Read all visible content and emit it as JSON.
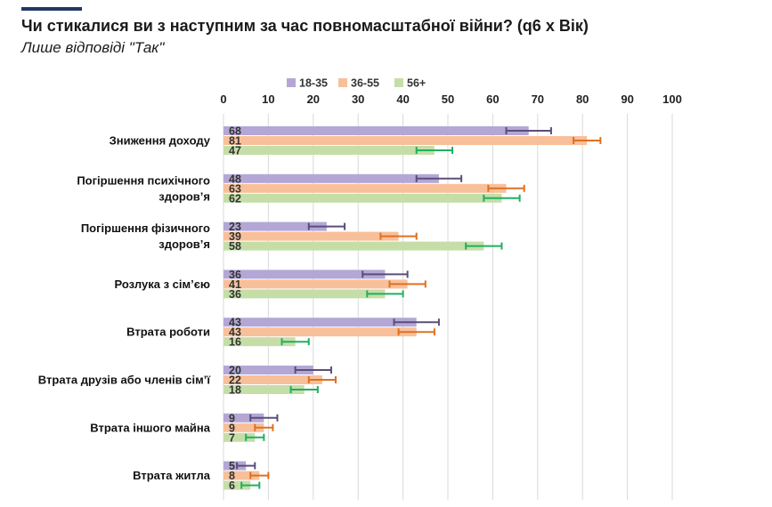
{
  "header": {
    "title": "Чи стикалися ви з наступним за час повномасштабної війни? (q6 x Вік)",
    "subtitle": "Лише відповіді \"Так\""
  },
  "colors": {
    "accent": "#1f3864",
    "series_fill": [
      "#b4a7d6",
      "#f8c09a",
      "#c5dea8"
    ],
    "series_error": [
      "#5b4e7a",
      "#e07020",
      "#20b060"
    ],
    "grid": "#d9d9d9"
  },
  "chart_data": {
    "type": "bar",
    "orientation": "horizontal",
    "xlim": [
      0,
      100
    ],
    "xticks": [
      "0",
      "10",
      "20",
      "30",
      "40",
      "50",
      "60",
      "70",
      "80",
      "90",
      "100"
    ],
    "legend_position": "top",
    "grid": true,
    "categories": [
      "Зниження доходу",
      "Погіршення психічного здоров’я",
      "Погіршення фізичного здоров’я",
      "Розлука з сім’єю",
      "Втрата роботи",
      "Втрата друзів або членів сім’ї",
      "Втрата іншого майна",
      "Втрата житла"
    ],
    "category_lines": [
      [
        "Зниження доходу"
      ],
      [
        "Погіршення психічного",
        "здоров’я"
      ],
      [
        "Погіршення фізичного",
        "здоров’я"
      ],
      [
        "Розлука з сім’єю"
      ],
      [
        "Втрата роботи"
      ],
      [
        "Втрата друзів або членів сім’ї"
      ],
      [
        "Втрата іншого майна"
      ],
      [
        "Втрата житла"
      ]
    ],
    "series": [
      {
        "name": "18-35",
        "values": [
          68,
          48,
          23,
          36,
          43,
          20,
          9,
          5
        ],
        "error": [
          5,
          5,
          4,
          5,
          5,
          4,
          3,
          2
        ]
      },
      {
        "name": "36-55",
        "values": [
          81,
          63,
          39,
          41,
          43,
          22,
          9,
          8
        ],
        "error": [
          3,
          4,
          4,
          4,
          4,
          3,
          2,
          2
        ]
      },
      {
        "name": "56+",
        "values": [
          47,
          62,
          58,
          36,
          16,
          18,
          7,
          6
        ],
        "error": [
          4,
          4,
          4,
          4,
          3,
          3,
          2,
          2
        ]
      }
    ]
  }
}
